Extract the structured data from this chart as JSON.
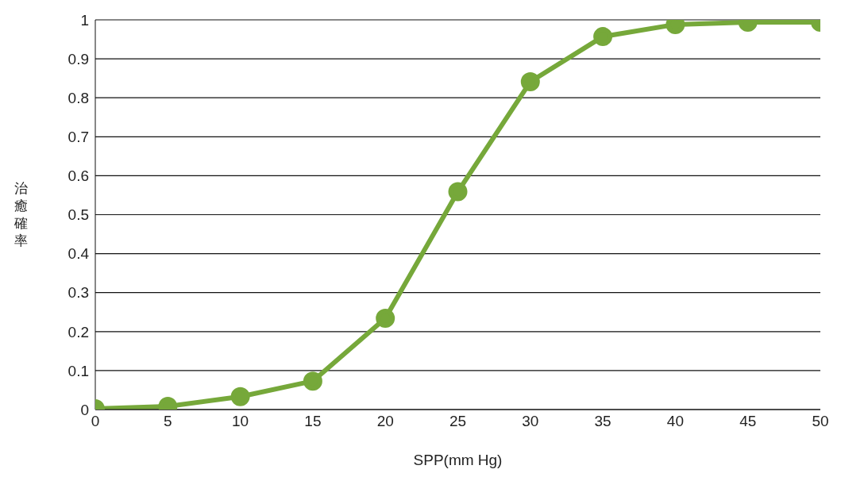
{
  "chart_data": {
    "type": "line",
    "xlabel": "SPP(mm Hg)",
    "ylabel": "治癒確率",
    "x": [
      0,
      5,
      10,
      15,
      20,
      25,
      30,
      35,
      40,
      45,
      50
    ],
    "series": [
      {
        "color": "#76a83a",
        "values": [
          0.002,
          0.008,
          0.033,
          0.073,
          0.234,
          0.559,
          0.841,
          0.957,
          0.988,
          0.994,
          0.994
        ]
      }
    ],
    "xlim": [
      0,
      50
    ],
    "xticks": [
      0,
      5,
      10,
      15,
      20,
      25,
      30,
      35,
      40,
      45,
      50
    ],
    "ylim": [
      0,
      1
    ],
    "yticks": [
      0,
      0.1,
      0.2,
      0.3,
      0.4,
      0.5,
      0.6,
      0.7,
      0.8,
      0.9,
      1
    ],
    "grid": "y",
    "marker": "circle",
    "line_style": "solid"
  }
}
